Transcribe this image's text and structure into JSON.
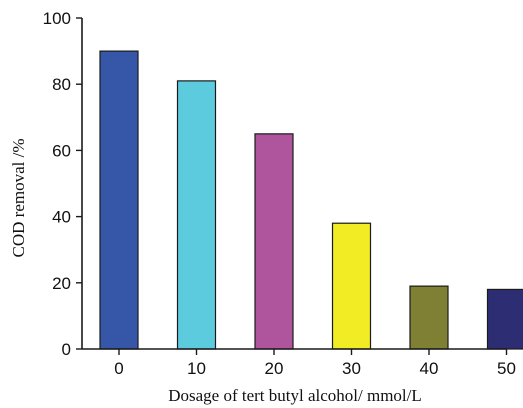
{
  "chart_data": {
    "type": "bar",
    "title": "",
    "xlabel": "Dosage of tert butyl alcohol/ mmol/L",
    "ylabel": "COD removal /%",
    "categories": [
      "0",
      "10",
      "20",
      "30",
      "40",
      "50"
    ],
    "values": [
      90,
      81,
      65,
      38,
      19,
      18
    ],
    "colors": [
      "#3656a8",
      "#5ccbdd",
      "#ae559d",
      "#f1ec23",
      "#7f8034",
      "#2d2d74"
    ],
    "ylim": [
      0,
      100
    ],
    "yticks": [
      "0",
      "20",
      "40",
      "60",
      "80",
      "100"
    ],
    "grid": false,
    "legend": "none"
  }
}
